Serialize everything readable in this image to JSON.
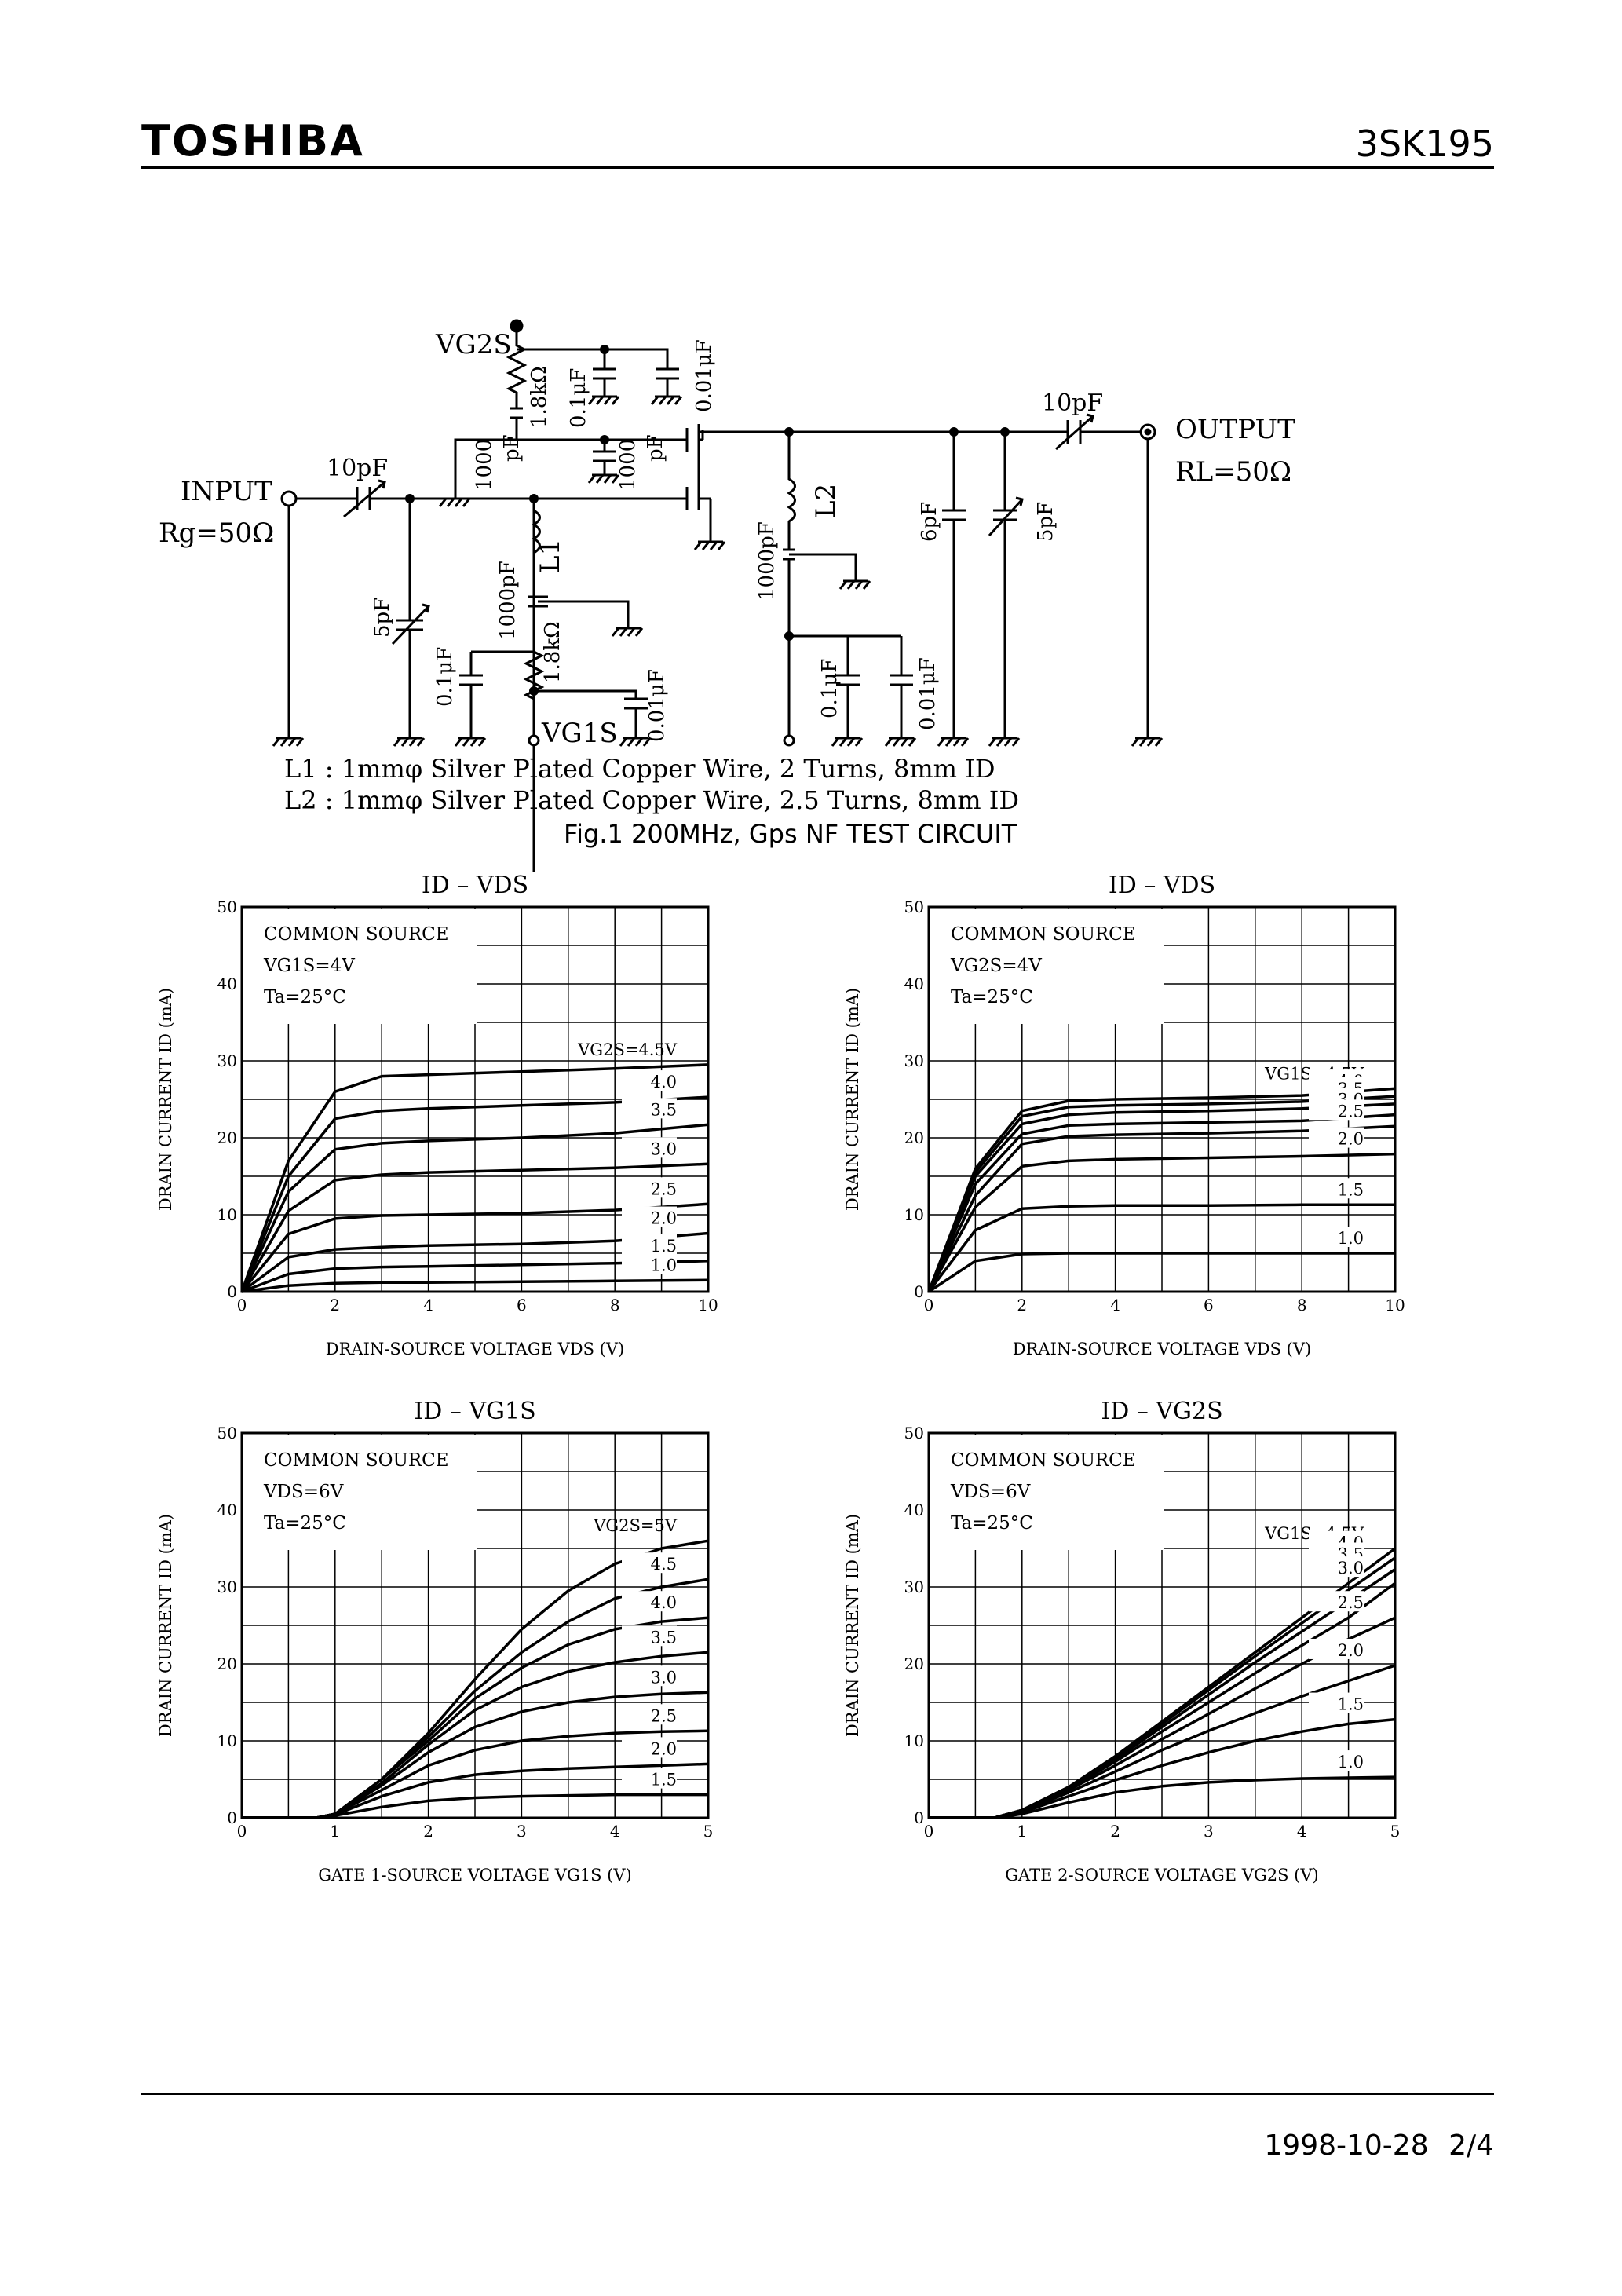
{
  "header": {
    "brand": "TOSHIBA",
    "part_number": "3SK195"
  },
  "circuit": {
    "caption": "Fig.1  200MHz, Gps NF TEST CIRCUIT",
    "notes": [
      "L1 : 1mmφ Silver Plated Copper Wire, 2 Turns, 8mm ID",
      "L2 : 1mmφ Silver Plated Copper Wire, 2.5 Turns, 8mm ID"
    ],
    "labels": {
      "input": "INPUT",
      "rg": "Rg=50Ω",
      "output": "OUTPUT",
      "rl": "RL=50Ω",
      "vg2s": "VG2S",
      "vg1s": "VG1S",
      "c_in": "10pF",
      "c_out": "10pF",
      "c_5pf_in": "5pF",
      "c_6pf": "6pF",
      "c_5pf_out": "5pF",
      "c_1000_a": "1000",
      "c_1000_a_unit": "pF",
      "c_1000_b": "1000",
      "c_1000_b_unit": "pF",
      "c_1000pf_l1": "1000pF",
      "c_1000pf_l2": "1000pF",
      "r_top": "1.8kΩ",
      "r_bot": "1.8kΩ",
      "c_01_top": "0.1μF",
      "c_001_top": "0.01μF",
      "c_01_bot": "0.1μF",
      "c_001_bot": "0.01μF",
      "c_01_r": "0.1μF",
      "c_001_r": "0.01μF",
      "l1": "L1",
      "l2": "L2"
    }
  },
  "chart_data": [
    {
      "type": "line",
      "title": "ID – VDS",
      "xlabel": "DRAIN-SOURCE VOLTAGE   VDS   (V)",
      "ylabel": "DRAIN CURRENT   ID   (mA)",
      "xlim": [
        0,
        10
      ],
      "ylim": [
        0,
        50
      ],
      "xticks": [
        "0",
        "2",
        "4",
        "6",
        "8",
        "10"
      ],
      "yticks": [
        "0",
        "10",
        "20",
        "30",
        "40",
        "50"
      ],
      "conditions": [
        "COMMON SOURCE",
        "VG1S=4V",
        "Ta=25°C"
      ],
      "grid": true,
      "series": [
        {
          "name": "VG2S=4.5V",
          "x": [
            0,
            1,
            2,
            3,
            4,
            6,
            8,
            10
          ],
          "y": [
            0,
            17,
            26,
            28,
            28.2,
            28.6,
            29,
            29.5
          ]
        },
        {
          "name": "4.0",
          "x": [
            0,
            1,
            2,
            3,
            4,
            6,
            8,
            10
          ],
          "y": [
            0,
            15,
            22.5,
            23.5,
            23.8,
            24.2,
            24.6,
            25.3
          ]
        },
        {
          "name": "3.5",
          "x": [
            0,
            1,
            2,
            3,
            4,
            6,
            8,
            10
          ],
          "y": [
            0,
            13,
            18.5,
            19.3,
            19.6,
            20,
            20.6,
            21.7
          ]
        },
        {
          "name": "3.0",
          "x": [
            0,
            1,
            2,
            3,
            4,
            6,
            8,
            10
          ],
          "y": [
            0,
            10.5,
            14.5,
            15.2,
            15.5,
            15.8,
            16.1,
            16.6
          ]
        },
        {
          "name": "2.5",
          "x": [
            0,
            1,
            2,
            3,
            4,
            6,
            8,
            10
          ],
          "y": [
            0,
            7.5,
            9.5,
            9.9,
            10,
            10.2,
            10.6,
            11.4
          ]
        },
        {
          "name": "2.0",
          "x": [
            0,
            1,
            2,
            3,
            4,
            6,
            8,
            10
          ],
          "y": [
            0,
            4.5,
            5.5,
            5.8,
            6,
            6.2,
            6.6,
            7.6
          ]
        },
        {
          "name": "1.5",
          "x": [
            0,
            1,
            2,
            3,
            4,
            6,
            8,
            10
          ],
          "y": [
            0,
            2.3,
            3,
            3.2,
            3.3,
            3.5,
            3.7,
            4
          ]
        },
        {
          "name": "1.0",
          "x": [
            0,
            1,
            2,
            3,
            4,
            6,
            8,
            10
          ],
          "y": [
            0,
            0.8,
            1.1,
            1.2,
            1.2,
            1.3,
            1.4,
            1.5
          ]
        }
      ]
    },
    {
      "type": "line",
      "title": "ID – VDS",
      "xlabel": "DRAIN-SOURCE VOLTAGE   VDS   (V)",
      "ylabel": "DRAIN CURRENT   ID   (mA)",
      "xlim": [
        0,
        10
      ],
      "ylim": [
        0,
        50
      ],
      "xticks": [
        "0",
        "2",
        "4",
        "6",
        "8",
        "10"
      ],
      "yticks": [
        "0",
        "10",
        "20",
        "30",
        "40",
        "50"
      ],
      "conditions": [
        "COMMON SOURCE",
        "VG2S=4V",
        "Ta=25°C"
      ],
      "grid": true,
      "series": [
        {
          "name": "VG1S=4.5V",
          "x": [
            0,
            1,
            2,
            3,
            4,
            6,
            8,
            10
          ],
          "y": [
            0,
            16,
            23.5,
            24.8,
            25,
            25.2,
            25.5,
            26.4
          ]
        },
        {
          "name": "4.0",
          "x": [
            0,
            1,
            2,
            3,
            4,
            6,
            8,
            10
          ],
          "y": [
            0,
            15.5,
            22.8,
            24,
            24.2,
            24.4,
            24.7,
            25.4
          ]
        },
        {
          "name": "3.5",
          "x": [
            0,
            1,
            2,
            3,
            4,
            6,
            8,
            10
          ],
          "y": [
            0,
            15,
            21.8,
            23,
            23.3,
            23.5,
            23.8,
            24.4
          ]
        },
        {
          "name": "3.0",
          "x": [
            0,
            1,
            2,
            3,
            4,
            6,
            8,
            10
          ],
          "y": [
            0,
            14,
            20.5,
            21.6,
            21.8,
            22,
            22.2,
            23
          ]
        },
        {
          "name": "2.5",
          "x": [
            0,
            1,
            2,
            3,
            4,
            6,
            8,
            10
          ],
          "y": [
            0,
            12.5,
            19.2,
            20.2,
            20.4,
            20.6,
            20.9,
            21.5
          ]
        },
        {
          "name": "2.0",
          "x": [
            0,
            1,
            2,
            3,
            4,
            6,
            8,
            10
          ],
          "y": [
            0,
            11,
            16.3,
            17,
            17.2,
            17.4,
            17.6,
            17.9
          ]
        },
        {
          "name": "1.5",
          "x": [
            0,
            1,
            2,
            3,
            4,
            6,
            8,
            10
          ],
          "y": [
            0,
            8,
            10.8,
            11.1,
            11.2,
            11.2,
            11.3,
            11.3
          ]
        },
        {
          "name": "1.0",
          "x": [
            0,
            1,
            2,
            3,
            4,
            6,
            8,
            10
          ],
          "y": [
            0,
            4,
            4.9,
            5,
            5,
            5,
            5,
            5
          ]
        }
      ]
    },
    {
      "type": "line",
      "title": "ID – VG1S",
      "xlabel": "GATE 1-SOURCE VOLTAGE   VG1S   (V)",
      "ylabel": "DRAIN CURRENT   ID   (mA)",
      "xlim": [
        0,
        5
      ],
      "ylim": [
        0,
        50
      ],
      "xticks": [
        "0",
        "1",
        "2",
        "3",
        "4",
        "5"
      ],
      "yticks": [
        "0",
        "10",
        "20",
        "30",
        "40",
        "50"
      ],
      "conditions": [
        "COMMON SOURCE",
        "VDS=6V",
        "Ta=25°C"
      ],
      "grid": true,
      "series": [
        {
          "name": "VG2S=5V",
          "x": [
            0,
            0.8,
            1,
            1.5,
            2,
            2.5,
            3,
            3.5,
            4,
            4.5,
            5
          ],
          "y": [
            0,
            0,
            0.5,
            5,
            11,
            18,
            24.5,
            29.5,
            33,
            35,
            36
          ]
        },
        {
          "name": "4.5",
          "x": [
            0,
            0.8,
            1,
            1.5,
            2,
            2.5,
            3,
            3.5,
            4,
            4.5,
            5
          ],
          "y": [
            0,
            0,
            0.5,
            5,
            10.5,
            16.5,
            21.5,
            25.5,
            28.5,
            30,
            31
          ]
        },
        {
          "name": "4.0",
          "x": [
            0,
            0.8,
            1,
            1.5,
            2,
            2.5,
            3,
            3.5,
            4,
            4.5,
            5
          ],
          "y": [
            0,
            0,
            0.5,
            5,
            10,
            15.5,
            19.5,
            22.5,
            24.5,
            25.5,
            26
          ]
        },
        {
          "name": "3.5",
          "x": [
            0,
            0.8,
            1,
            1.5,
            2,
            2.5,
            3,
            3.5,
            4,
            4.5,
            5
          ],
          "y": [
            0,
            0,
            0.5,
            4.5,
            9.5,
            14,
            17,
            19,
            20.2,
            21,
            21.5
          ]
        },
        {
          "name": "3.0",
          "x": [
            0,
            0.8,
            1,
            1.5,
            2,
            2.5,
            3,
            3.5,
            4,
            4.5,
            5
          ],
          "y": [
            0,
            0,
            0.5,
            4.2,
            8.5,
            11.8,
            13.8,
            15,
            15.7,
            16.1,
            16.3
          ]
        },
        {
          "name": "2.5",
          "x": [
            0,
            0.8,
            1,
            1.5,
            2,
            2.5,
            3,
            3.5,
            4,
            4.5,
            5
          ],
          "y": [
            0,
            0,
            0.5,
            3.6,
            6.8,
            8.8,
            10,
            10.6,
            11,
            11.2,
            11.3
          ]
        },
        {
          "name": "2.0",
          "x": [
            0,
            0.8,
            1,
            1.5,
            2,
            2.5,
            3,
            3.5,
            4,
            4.5,
            5
          ],
          "y": [
            0,
            0,
            0.4,
            2.8,
            4.6,
            5.6,
            6.1,
            6.4,
            6.6,
            6.8,
            7
          ]
        },
        {
          "name": "1.5",
          "x": [
            0,
            0.8,
            1,
            1.5,
            2,
            2.5,
            3,
            3.5,
            4,
            4.5,
            5
          ],
          "y": [
            0,
            0,
            0.3,
            1.4,
            2.2,
            2.6,
            2.8,
            2.9,
            3,
            3,
            3
          ]
        }
      ]
    },
    {
      "type": "line",
      "title": "ID – VG2S",
      "xlabel": "GATE 2-SOURCE VOLTAGE   VG2S   (V)",
      "ylabel": "DRAIN CURRENT   ID   (mA)",
      "xlim": [
        0,
        5
      ],
      "ylim": [
        0,
        50
      ],
      "xticks": [
        "0",
        "1",
        "2",
        "3",
        "4",
        "5"
      ],
      "yticks": [
        "0",
        "10",
        "20",
        "30",
        "40",
        "50"
      ],
      "conditions": [
        "COMMON SOURCE",
        "VDS=6V",
        "Ta=25°C"
      ],
      "grid": true,
      "series": [
        {
          "name": "VG1S=4.5V",
          "x": [
            0,
            0.7,
            1,
            1.5,
            2,
            2.5,
            3,
            3.5,
            4,
            4.5,
            5
          ],
          "y": [
            0,
            0,
            1,
            4,
            8,
            12.5,
            17,
            21.5,
            26,
            30.5,
            35
          ]
        },
        {
          "name": "4.0",
          "x": [
            0,
            0.7,
            1,
            1.5,
            2,
            2.5,
            3,
            3.5,
            4,
            4.5,
            5
          ],
          "y": [
            0,
            0,
            1,
            4,
            7.8,
            12.2,
            16.6,
            21,
            25.3,
            29.6,
            33.8
          ]
        },
        {
          "name": "3.5",
          "x": [
            0,
            0.7,
            1,
            1.5,
            2,
            2.5,
            3,
            3.5,
            4,
            4.5,
            5
          ],
          "y": [
            0,
            0,
            1,
            3.9,
            7.6,
            11.8,
            16,
            20.2,
            24.2,
            28.2,
            32.3
          ]
        },
        {
          "name": "3.0",
          "x": [
            0,
            0.7,
            1,
            1.5,
            2,
            2.5,
            3,
            3.5,
            4,
            4.5,
            5
          ],
          "y": [
            0,
            0,
            0.9,
            3.8,
            7.3,
            11.2,
            15,
            18.8,
            22.4,
            26,
            30.5
          ]
        },
        {
          "name": "2.5",
          "x": [
            0,
            0.7,
            1,
            1.5,
            2,
            2.5,
            3,
            3.5,
            4,
            4.5,
            5
          ],
          "y": [
            0,
            0,
            0.9,
            3.6,
            6.8,
            10.2,
            13.5,
            16.8,
            20,
            23.2,
            26
          ]
        },
        {
          "name": "2.0",
          "x": [
            0,
            0.7,
            1,
            1.5,
            2,
            2.5,
            3,
            3.5,
            4,
            4.5,
            5
          ],
          "y": [
            0,
            0,
            0.8,
            3.3,
            6,
            8.8,
            11.3,
            13.6,
            15.8,
            17.8,
            19.8
          ]
        },
        {
          "name": "1.5",
          "x": [
            0,
            0.7,
            1,
            1.5,
            2,
            2.5,
            3,
            3.5,
            4,
            4.5,
            5
          ],
          "y": [
            0,
            0,
            0.7,
            2.8,
            4.9,
            6.8,
            8.5,
            10,
            11.2,
            12.2,
            12.8
          ]
        },
        {
          "name": "1.0",
          "x": [
            0,
            0.7,
            1,
            1.5,
            2,
            2.5,
            3,
            3.5,
            4,
            4.5,
            5
          ],
          "y": [
            0,
            0,
            0.5,
            2,
            3.3,
            4.1,
            4.6,
            4.9,
            5.1,
            5.2,
            5.3
          ]
        }
      ]
    }
  ],
  "footer": {
    "date": "1998-10-28",
    "page": "2/4"
  }
}
